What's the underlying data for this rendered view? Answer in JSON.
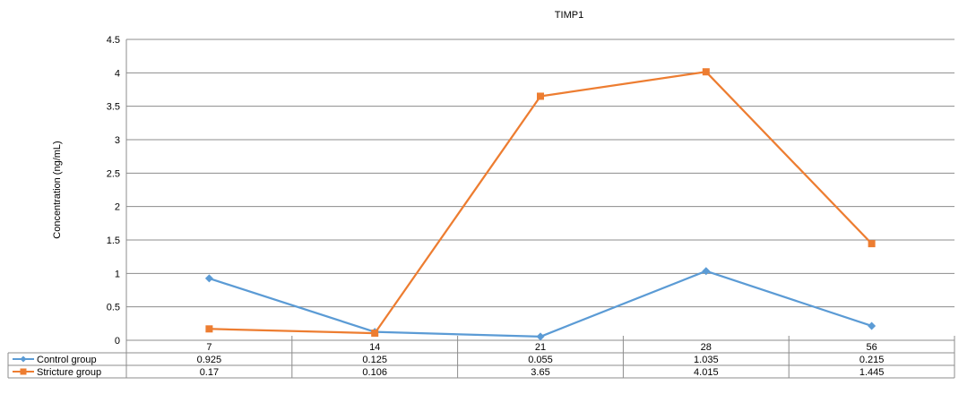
{
  "chart_data": {
    "type": "line",
    "title": "TIMP1",
    "xlabel": "",
    "ylabel": "Concentration (ng/mL)",
    "categories": [
      "7",
      "14",
      "21",
      "28",
      "56"
    ],
    "ylim": [
      0,
      4.5
    ],
    "yticks": [
      "0",
      "0.5",
      "1",
      "1.5",
      "2",
      "2.5",
      "3",
      "3.5",
      "4",
      "4.5"
    ],
    "grid": true,
    "legend": "data-table",
    "series": [
      {
        "name": "Control group",
        "color": "#5B9BD5",
        "marker": "diamond",
        "values": [
          0.925,
          0.125,
          0.055,
          1.035,
          0.215
        ],
        "labels": [
          "0.925",
          "0.125",
          "0.055",
          "1.035",
          "0.215"
        ]
      },
      {
        "name": "Stricture group",
        "color": "#ED7D31",
        "marker": "square",
        "values": [
          0.17,
          0.106,
          3.65,
          4.015,
          1.445
        ],
        "labels": [
          "0.17",
          "0.106",
          "3.65",
          "4.015",
          "1.445"
        ]
      }
    ]
  }
}
